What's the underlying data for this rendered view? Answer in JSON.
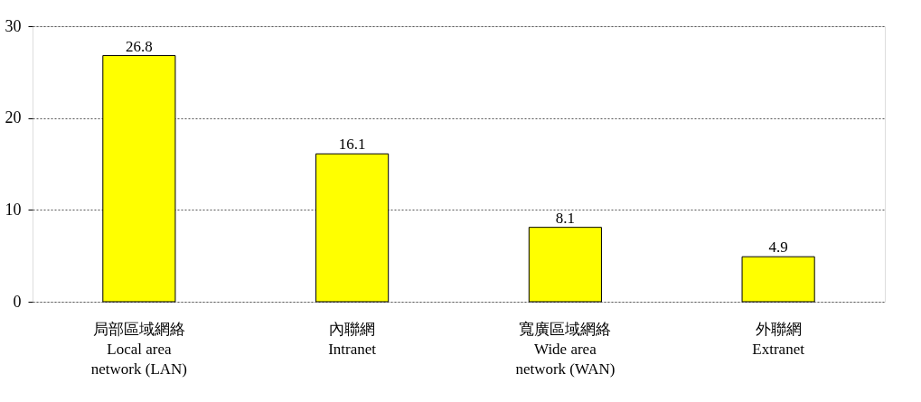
{
  "chart_data": {
    "type": "bar",
    "categories": [
      "局部區域網絡\nLocal area\nnetwork (LAN)",
      "內聯網\nIntranet",
      "寬廣區域網絡\nWide area\nnetwork (WAN)",
      "外聯網\nExtranet"
    ],
    "values": [
      26.8,
      16.1,
      8.1,
      4.9
    ],
    "color": "#ffff00",
    "ylim": [
      0,
      30
    ],
    "yticks": [
      0,
      10,
      20,
      30
    ],
    "grid": "y",
    "data_labels": true
  }
}
